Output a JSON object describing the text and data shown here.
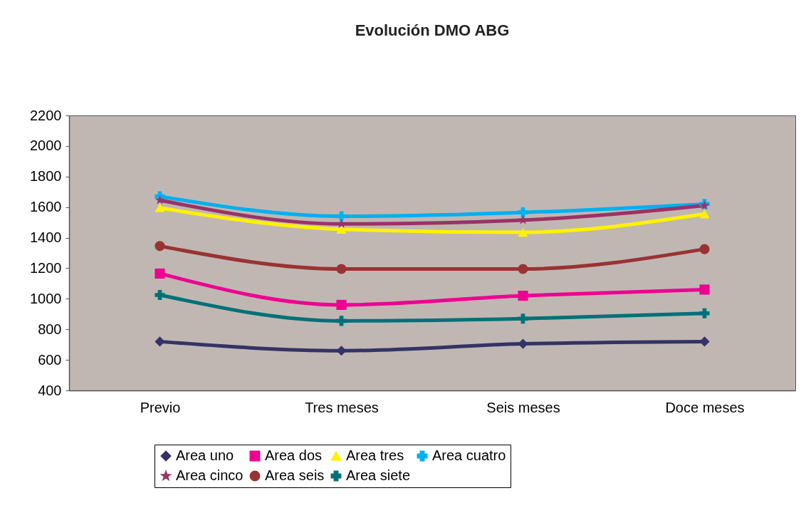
{
  "chart_data": {
    "type": "line",
    "title": "Evolución DMO ABG",
    "categories": [
      "Previo",
      "Tres meses",
      "Seis meses",
      "Doce meses"
    ],
    "ylim": [
      400,
      2200
    ],
    "yticks": [
      400,
      600,
      800,
      1000,
      1200,
      1400,
      1600,
      1800,
      2000,
      2200
    ],
    "legend": "bottom",
    "line_style": "solid",
    "series": [
      {
        "name": "Area uno",
        "color": "#333366",
        "marker": "diamond",
        "values": [
          720,
          660,
          705,
          720
        ]
      },
      {
        "name": "Area dos",
        "color": "#ee0090",
        "marker": "square",
        "values": [
          1165,
          960,
          1020,
          1060
        ]
      },
      {
        "name": "Area tres",
        "color": "#fff200",
        "marker": "triangle",
        "values": [
          1595,
          1455,
          1435,
          1555
        ]
      },
      {
        "name": "Area cuatro",
        "color": "#00b0f0",
        "marker": "cross",
        "values": [
          1670,
          1540,
          1565,
          1620
        ]
      },
      {
        "name": "Area cinco",
        "color": "#993366",
        "marker": "star",
        "values": [
          1645,
          1490,
          1515,
          1610
        ]
      },
      {
        "name": "Area seis",
        "color": "#993333",
        "marker": "circle",
        "values": [
          1345,
          1195,
          1195,
          1325
        ]
      },
      {
        "name": "Area siete",
        "color": "#007178",
        "marker": "cross",
        "values": [
          1025,
          855,
          870,
          905
        ]
      }
    ]
  }
}
